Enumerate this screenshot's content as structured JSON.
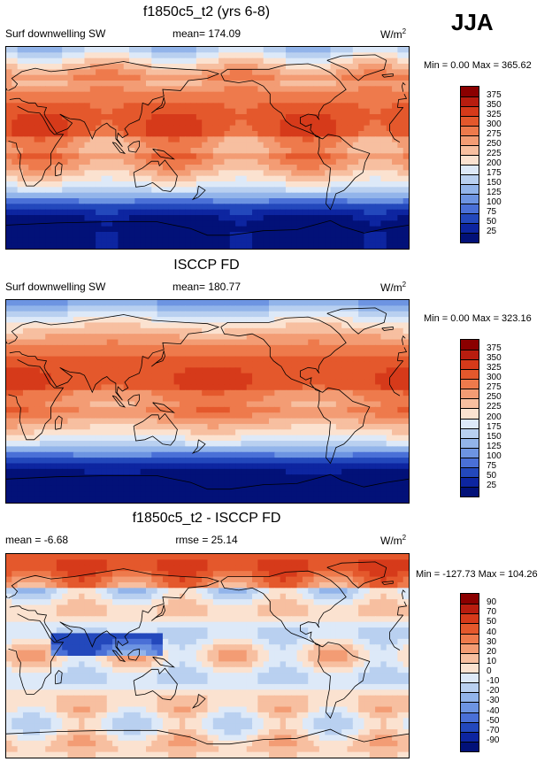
{
  "header": {
    "season": "JJA"
  },
  "panels": [
    {
      "title": "f1850c5_t2 (yrs 6-8)",
      "left_label": "Surf downwelling SW",
      "center_label": "mean= 174.09",
      "units": "W/m",
      "units_sup": "2",
      "min_max": "Min =   0.00 Max = 365.62",
      "colorbar_ticks": [
        "375",
        "350",
        "325",
        "300",
        "275",
        "250",
        "225",
        "200",
        "175",
        "150",
        "125",
        "100",
        "75",
        "50",
        "25"
      ],
      "colorbar_colors": [
        "#8b0000",
        "#b81d0f",
        "#d63a1a",
        "#e4582c",
        "#ee7a4c",
        "#f39c74",
        "#f7bfa0",
        "#fbe2d0",
        "#dde9f8",
        "#b9d0f0",
        "#92b4ea",
        "#6d94e2",
        "#4a70d7",
        "#2348bc",
        "#0d25a0",
        "#021178"
      ],
      "field": "sw_model"
    },
    {
      "title": "ISCCP FD",
      "left_label": "Surf downwelling SW",
      "center_label": "mean= 180.77",
      "units": "W/m",
      "units_sup": "2",
      "min_max": "Min =   0.00 Max = 323.16",
      "colorbar_ticks": [
        "375",
        "350",
        "325",
        "300",
        "275",
        "250",
        "225",
        "200",
        "175",
        "150",
        "125",
        "100",
        "75",
        "50",
        "25"
      ],
      "colorbar_colors": [
        "#8b0000",
        "#b81d0f",
        "#d63a1a",
        "#e4582c",
        "#ee7a4c",
        "#f39c74",
        "#f7bfa0",
        "#fbe2d0",
        "#dde9f8",
        "#b9d0f0",
        "#92b4ea",
        "#6d94e2",
        "#4a70d7",
        "#2348bc",
        "#0d25a0",
        "#021178"
      ],
      "field": "sw_obs"
    },
    {
      "title": "f1850c5_t2 - ISCCP FD",
      "left_label": "mean =  -6.68",
      "center_label": "rmse =  25.14",
      "units": "W/m",
      "units_sup": "2",
      "min_max": "Min = -127.73 Max = 104.26",
      "colorbar_ticks": [
        "90",
        "70",
        "50",
        "40",
        "30",
        "20",
        "10",
        "0",
        "-10",
        "-20",
        "-30",
        "-40",
        "-50",
        "-70",
        "-90"
      ],
      "colorbar_colors": [
        "#8b0000",
        "#b81d0f",
        "#d63a1a",
        "#e4582c",
        "#ee7a4c",
        "#f39c74",
        "#f7bfa0",
        "#fbe2d0",
        "#dde9f8",
        "#b9d0f0",
        "#92b4ea",
        "#6d94e2",
        "#4a70d7",
        "#2348bc",
        "#0d25a0",
        "#021178"
      ],
      "field": "diff"
    }
  ],
  "chart_data": [
    {
      "type": "heatmap",
      "title": "f1850c5_t2 (yrs 6-8)",
      "variable": "Surf downwelling SW",
      "units": "W/m2",
      "mean": 174.09,
      "min": 0.0,
      "max": 365.62,
      "contour_levels": [
        25,
        50,
        75,
        100,
        125,
        150,
        175,
        200,
        225,
        250,
        275,
        300,
        325,
        350,
        375
      ],
      "projection": "cylindrical equidistant, centered on 180"
    },
    {
      "type": "heatmap",
      "title": "ISCCP FD",
      "variable": "Surf downwelling SW",
      "units": "W/m2",
      "mean": 180.77,
      "min": 0.0,
      "max": 323.16,
      "contour_levels": [
        25,
        50,
        75,
        100,
        125,
        150,
        175,
        200,
        225,
        250,
        275,
        300,
        325,
        350,
        375
      ],
      "projection": "cylindrical equidistant, centered on 180"
    },
    {
      "type": "heatmap",
      "title": "f1850c5_t2 - ISCCP FD",
      "units": "W/m2",
      "mean": -6.68,
      "rmse": 25.14,
      "min": -127.73,
      "max": 104.26,
      "contour_levels": [
        -90,
        -70,
        -50,
        -40,
        -30,
        -20,
        -10,
        0,
        10,
        20,
        30,
        40,
        50,
        70,
        90
      ],
      "projection": "cylindrical equidistant, centered on 180"
    }
  ]
}
